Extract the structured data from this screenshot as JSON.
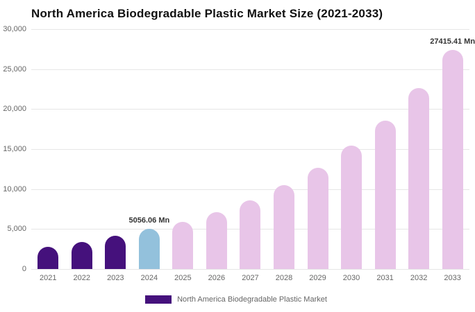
{
  "title": "North America Biodegradable Plastic Market Size (2021-2033)",
  "legend": {
    "label": "North America Biodegradable Plastic Market",
    "swatch_color": "#45117c"
  },
  "colors": {
    "historical_bar": "#45117c",
    "current_year_bar": "#93c1dc",
    "forecast_bar": "#e8c5e8",
    "gridline": "#e6e6e6",
    "axis_text": "#666666",
    "data_label_text": "#333333"
  },
  "chart_data": {
    "type": "bar",
    "title": "North America Biodegradable Plastic Market Size (2021-2033)",
    "xlabel": "",
    "ylabel": "",
    "ylim": [
      0,
      30000
    ],
    "ytick_interval": 5000,
    "ytick_labels": [
      "0",
      "5,000",
      "10,000",
      "15,000",
      "20,000",
      "25,000",
      "30,000"
    ],
    "grid": true,
    "legend_position": "bottom",
    "categories": [
      "2021",
      "2022",
      "2023",
      "2024",
      "2025",
      "2026",
      "2027",
      "2028",
      "2029",
      "2030",
      "2031",
      "2032",
      "2033"
    ],
    "values": [
      2800,
      3400,
      4200,
      5056.06,
      5900,
      7100,
      8600,
      10500,
      12700,
      15400,
      18600,
      22600,
      27415.41
    ],
    "bar_colors": [
      "#45117c",
      "#45117c",
      "#45117c",
      "#93c1dc",
      "#e8c5e8",
      "#e8c5e8",
      "#e8c5e8",
      "#e8c5e8",
      "#e8c5e8",
      "#e8c5e8",
      "#e8c5e8",
      "#e8c5e8",
      "#e8c5e8"
    ],
    "point_labels": {
      "2024": "5056.06 Mn",
      "2033": "27415.41 Mn"
    },
    "series": [
      {
        "name": "North America Biodegradable Plastic Market",
        "values": [
          2800,
          3400,
          4200,
          5056.06,
          5900,
          7100,
          8600,
          10500,
          12700,
          15400,
          18600,
          22600,
          27415.41
        ]
      }
    ]
  }
}
